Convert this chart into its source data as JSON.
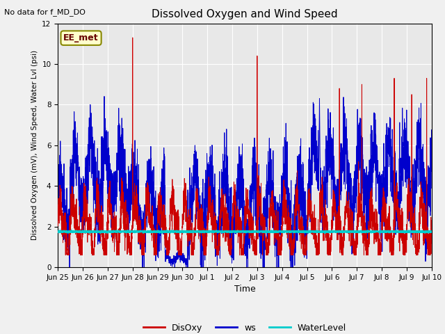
{
  "title": "Dissolved Oxygen and Wind Speed",
  "top_left_text": "No data for f_MD_DO",
  "annotation_text": "EE_met",
  "xlabel": "Time",
  "ylabel": "Dissolved Oxygen (mV), Wind Speed, Water Lvl (psi)",
  "ylim": [
    0,
    12
  ],
  "yticks": [
    0,
    2,
    4,
    6,
    8,
    10,
    12
  ],
  "fig_bg_color": "#f0f0f0",
  "plot_bg_color": "#e8e8e8",
  "disoxy_color": "#cc0000",
  "ws_color": "#0000cc",
  "water_level_color": "#00cccc",
  "water_level_value": 1.75,
  "legend_labels": [
    "DisOxy",
    "ws",
    "WaterLevel"
  ],
  "x_tick_labels": [
    "Jun 25",
    "Jun 26",
    "Jun 27",
    "Jun 28",
    "Jun 29",
    "Jun 30",
    "Jul 1",
    "Jul 2",
    "Jul 3",
    "Jul 4",
    "Jul 5",
    "Jul 6",
    "Jul 7",
    "Jul 8",
    "Jul 9",
    "Jul 10"
  ],
  "n_points": 3600,
  "seed": 42
}
